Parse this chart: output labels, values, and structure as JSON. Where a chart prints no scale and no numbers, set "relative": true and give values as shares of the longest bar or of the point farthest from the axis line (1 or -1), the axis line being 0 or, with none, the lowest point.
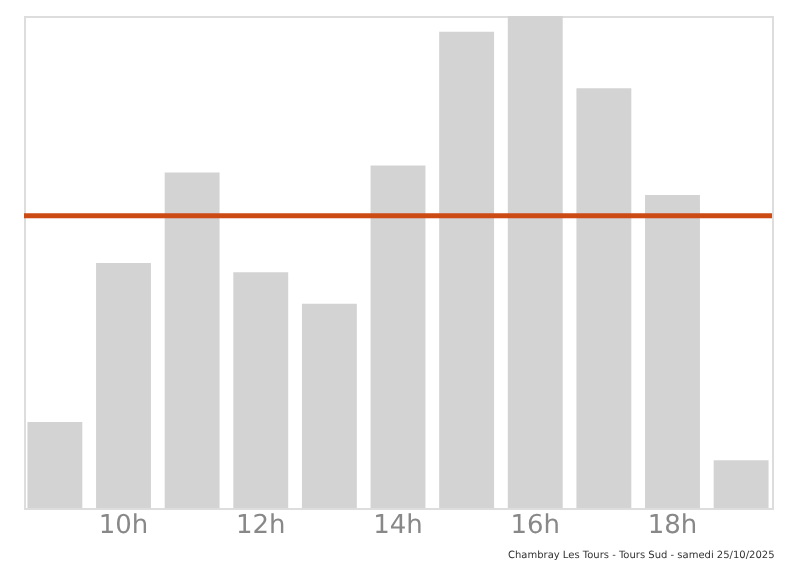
{
  "chart_data": {
    "type": "bar",
    "relative": true,
    "categories": [
      null,
      "10h",
      null,
      "12h",
      null,
      "14h",
      null,
      "16h",
      null,
      "18h",
      null
    ],
    "values": [
      0.175,
      0.498,
      0.682,
      0.479,
      0.415,
      0.696,
      0.968,
      1,
      0.853,
      0.636,
      0.097
    ],
    "color": "#d3d3d3",
    "ref_lines": [
      {
        "axis": "y",
        "value": 0.594,
        "color": "#cc4a14"
      }
    ],
    "annotations": [
      "Chambray Les Tours - Tours Sud - samedi 25/10/2025"
    ],
    "grid": false
  }
}
